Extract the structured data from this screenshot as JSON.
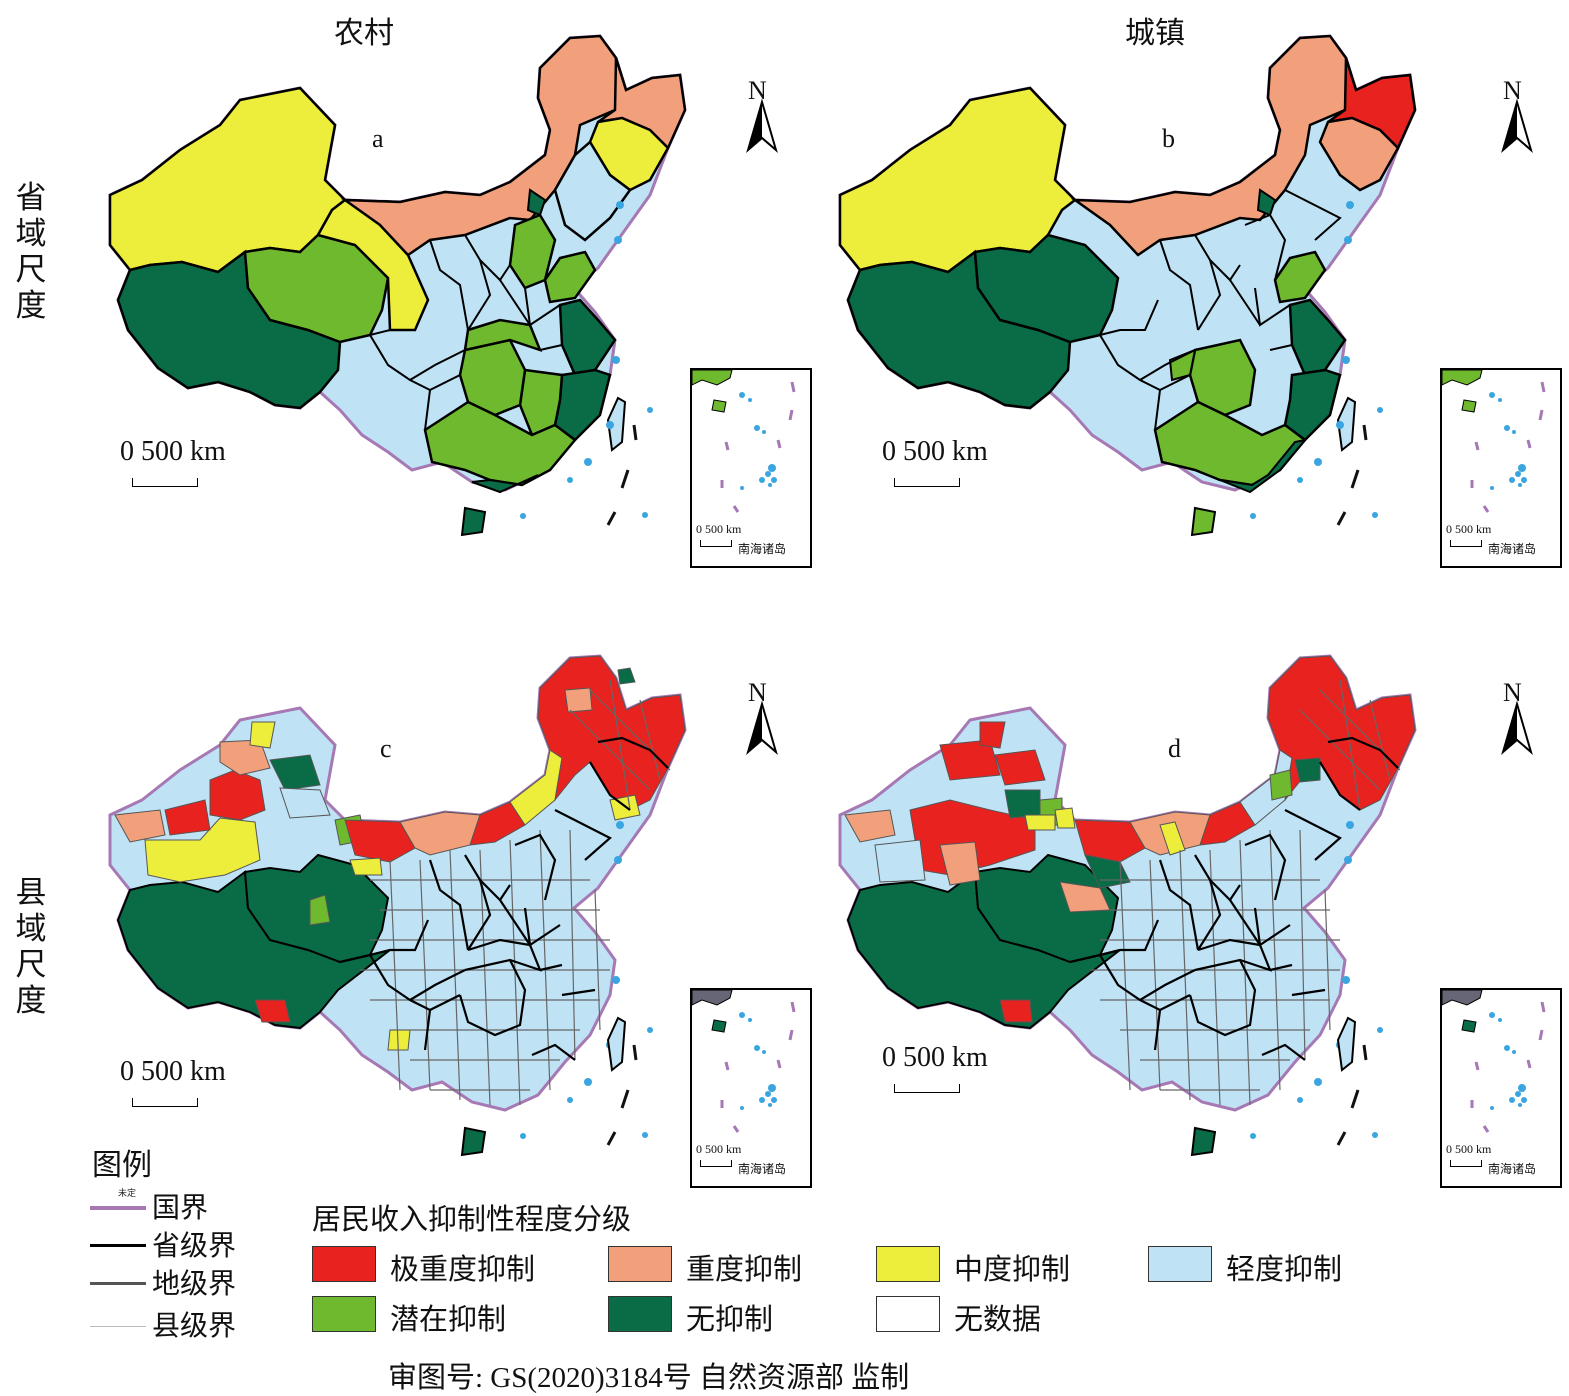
{
  "columns": {
    "left": "农村",
    "right": "城镇"
  },
  "rows": {
    "top": "省域尺度",
    "bottom": "县域尺度"
  },
  "panels": [
    {
      "label": "a",
      "column": "农村",
      "scale": "省域尺度"
    },
    {
      "label": "b",
      "column": "城镇",
      "scale": "省域尺度"
    },
    {
      "label": "c",
      "column": "农村",
      "scale": "县域尺度"
    },
    {
      "label": "d",
      "column": "城镇",
      "scale": "县域尺度"
    }
  ],
  "north_label": "N",
  "scale_text": "0   500 km",
  "inset": {
    "scale_text": "0    500 km",
    "name": "南海诸岛"
  },
  "legend": {
    "title": "图例",
    "undetermined_mark": "未定",
    "boundaries": [
      {
        "label": "国界",
        "color": "#a678b4"
      },
      {
        "label": "省级界",
        "color": "#000000"
      },
      {
        "label": "地级界",
        "color": "#555555"
      },
      {
        "label": "县级界",
        "color": "#bbbbbb"
      }
    ],
    "classification_title": "居民收入抑制性程度分级",
    "classes": [
      {
        "label": "极重度抑制",
        "color": "#e8231f"
      },
      {
        "label": "重度抑制",
        "color": "#f2a07c"
      },
      {
        "label": "中度抑制",
        "color": "#eded3c"
      },
      {
        "label": "轻度抑制",
        "color": "#bfe3f5"
      },
      {
        "label": "潜在抑制",
        "color": "#6fb92f"
      },
      {
        "label": "无抑制",
        "color": "#0a6b47"
      },
      {
        "label": "无数据",
        "color": "#ffffff"
      }
    ]
  },
  "footer": "审图号: GS(2020)3184号 自然资源部  监制"
}
